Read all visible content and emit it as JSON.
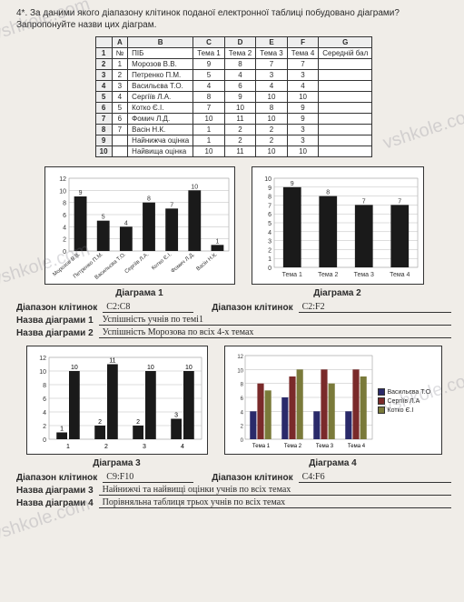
{
  "question": "4*. За даними якого діапазону клітинок поданої електронної таблиці побудовано діаграми? Запропонуйте назви цих діаграм.",
  "sheet": {
    "colHeads": [
      "",
      "A",
      "B",
      "C",
      "D",
      "E",
      "F",
      "G"
    ],
    "rows": [
      [
        "1",
        "№",
        "ПІБ",
        "Тема 1",
        "Тема 2",
        "Тема 3",
        "Тема 4",
        "Середній бал"
      ],
      [
        "2",
        "1",
        "Морозов В.В.",
        "9",
        "8",
        "7",
        "7",
        ""
      ],
      [
        "3",
        "2",
        "Петренко П.М.",
        "5",
        "4",
        "3",
        "3",
        ""
      ],
      [
        "4",
        "3",
        "Васильєва Т.О.",
        "4",
        "6",
        "4",
        "4",
        ""
      ],
      [
        "5",
        "4",
        "Сергіїв Л.А.",
        "8",
        "9",
        "10",
        "10",
        ""
      ],
      [
        "6",
        "5",
        "Котко Є.І.",
        "7",
        "10",
        "8",
        "9",
        ""
      ],
      [
        "7",
        "6",
        "Фомич Л.Д.",
        "10",
        "11",
        "10",
        "9",
        ""
      ],
      [
        "8",
        "7",
        "Васін Н.К.",
        "1",
        "2",
        "2",
        "3",
        ""
      ],
      [
        "9",
        "",
        "Найнижча оцінка",
        "1",
        "2",
        "2",
        "3",
        ""
      ],
      [
        "10",
        "",
        "Найвища оцінка",
        "10",
        "11",
        "10",
        "10",
        ""
      ]
    ]
  },
  "chart1": {
    "type": "bar",
    "values": [
      9,
      5,
      4,
      8,
      7,
      10,
      1
    ],
    "ymax": 12,
    "ytick": 2,
    "labels": [
      "Морозов В.В.",
      "Петренко П.М.",
      "Васильєва Т.О.",
      "Сергіїв Л.А.",
      "Котко Є.І.",
      "Фомич Л.Д.",
      "Васін Н.К."
    ],
    "bar_color": "#1a1a1a",
    "bg": "#ffffff",
    "grid": "#bbb",
    "title": "Діаграма 1"
  },
  "chart2": {
    "type": "bar",
    "values": [
      9,
      8,
      7,
      7
    ],
    "ymax": 10,
    "ytick": 1,
    "labels": [
      "Тема 1",
      "Тема 2",
      "Тема 3",
      "Тема 4"
    ],
    "bar_color": "#1a1a1a",
    "bg": "#ffffff",
    "grid": "#bbb",
    "title": "Діаграма 2"
  },
  "chart3": {
    "type": "grouped-bar",
    "groups": [
      "1",
      "2",
      "3",
      "4"
    ],
    "seriesA": [
      1,
      2,
      2,
      3
    ],
    "seriesB": [
      10,
      11,
      10,
      10
    ],
    "ymax": 12,
    "ytick": 2,
    "colors": [
      "#1a1a1a",
      "#1a1a1a"
    ],
    "title": "Діаграма 3"
  },
  "chart4": {
    "type": "grouped-bar",
    "groups": [
      "Тема 1",
      "Тема 2",
      "Тема 3",
      "Тема 4"
    ],
    "series": [
      {
        "name": "Васильєва Т.О",
        "color": "#2a2a6a",
        "vals": [
          4,
          6,
          4,
          4
        ]
      },
      {
        "name": "Сергіїв Л.А",
        "color": "#7a2a2a",
        "vals": [
          8,
          9,
          10,
          10
        ]
      },
      {
        "name": "Котко Є.І",
        "color": "#7a7a3a",
        "vals": [
          7,
          10,
          8,
          9
        ]
      }
    ],
    "ymax": 12,
    "ytick": 2,
    "title": "Діаграма 4"
  },
  "answers": {
    "range_lbl": "Діапазон клітинок",
    "name_lbl": "Назва діаграми",
    "d1_range": "C2:C8",
    "d2_range": "C2:F2",
    "d1_name": "Успішність учнів по темі1",
    "d2_name": "Успішність Морозова по всіх 4-х темах",
    "d3_range": "C9:F10",
    "d4_range": "C4:F6",
    "d3_name": "Найнижчі та найвищі оцінки учнів по всіх темах",
    "d4_name": "Порівняльна таблиця трьох учнів по всіх темах"
  }
}
